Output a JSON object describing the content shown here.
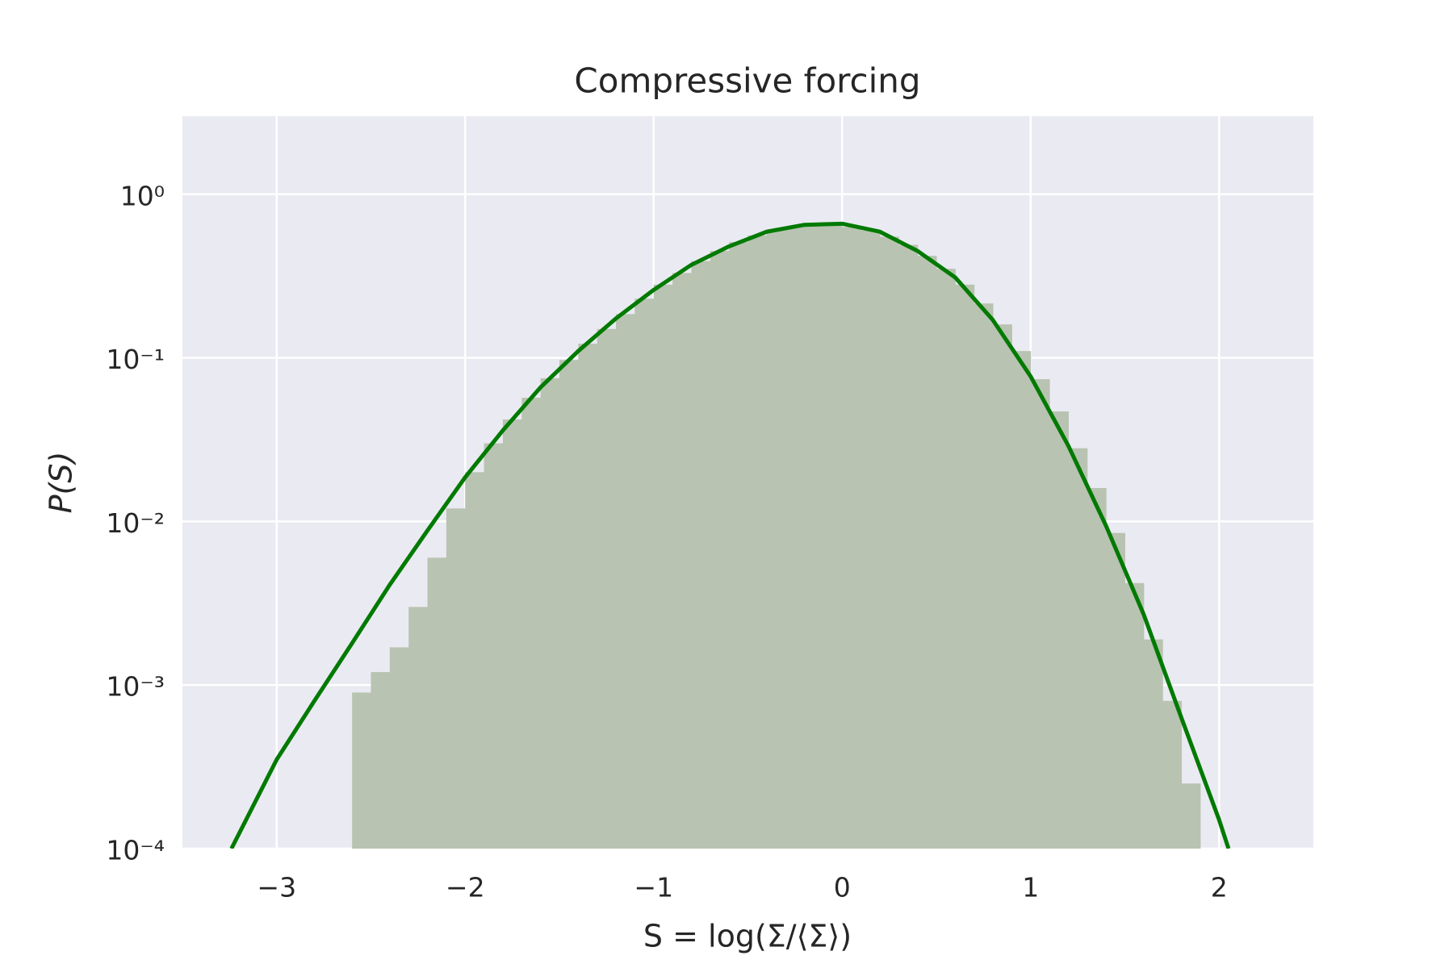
{
  "chart_data": {
    "type": "histogram",
    "title": "Compressive forcing",
    "xlabel": "S = log(Σ/⟨Σ⟩)",
    "ylabel": "P(S)",
    "yscale": "log",
    "grid": true,
    "background": "#eaeaf2",
    "xlim": [
      -3.5,
      2.5
    ],
    "ylim": [
      0.0001,
      3
    ],
    "xticks": [
      {
        "value": -3,
        "label": "−3"
      },
      {
        "value": -2,
        "label": "−2"
      },
      {
        "value": -1,
        "label": "−1"
      },
      0,
      1,
      2
    ],
    "yticks": [
      {
        "value": 0.0001,
        "label": "10⁻⁴"
      },
      {
        "value": 0.001,
        "label": "10⁻³"
      },
      {
        "value": 0.01,
        "label": "10⁻²"
      },
      {
        "value": 0.1,
        "label": "10⁻¹"
      },
      {
        "value": 1,
        "label": "10⁰"
      }
    ],
    "color": "#b8c3b1",
    "bins": [
      -2.6,
      -2.5,
      -2.4,
      -2.3,
      -2.2,
      -2.1,
      -2.0,
      -1.9,
      -1.8,
      -1.7,
      -1.6,
      -1.5,
      -1.4,
      -1.3,
      -1.2,
      -1.1,
      -1.0,
      -0.9,
      -0.8,
      -0.7,
      -0.6,
      -0.5,
      -0.4,
      -0.3,
      -0.2,
      -0.1,
      0.0,
      0.1,
      0.2,
      0.3,
      0.4,
      0.5,
      0.6,
      0.7,
      0.8,
      0.9,
      1.0,
      1.1,
      1.2,
      1.3,
      1.4,
      1.5,
      1.6,
      1.7,
      1.8,
      1.9
    ],
    "values": [
      0.0009,
      0.0012,
      0.0017,
      0.003,
      0.006,
      0.012,
      0.02,
      0.03,
      0.042,
      0.057,
      0.075,
      0.097,
      0.122,
      0.15,
      0.185,
      0.23,
      0.28,
      0.33,
      0.39,
      0.45,
      0.51,
      0.56,
      0.6,
      0.63,
      0.65,
      0.65,
      0.63,
      0.6,
      0.55,
      0.49,
      0.42,
      0.35,
      0.28,
      0.215,
      0.16,
      0.11,
      0.074,
      0.047,
      0.028,
      0.016,
      0.0085,
      0.0042,
      0.0019,
      0.0008,
      0.00025
    ],
    "overlay": {
      "type": "line",
      "color": "#007a00",
      "x": [
        -3.24,
        -3.0,
        -2.8,
        -2.6,
        -2.4,
        -2.2,
        -2.0,
        -1.8,
        -1.6,
        -1.4,
        -1.2,
        -1.0,
        -0.8,
        -0.6,
        -0.4,
        -0.2,
        0.0,
        0.2,
        0.4,
        0.6,
        0.8,
        1.0,
        1.2,
        1.4,
        1.6,
        1.8,
        2.0,
        2.05
      ],
      "values": [
        0.0001,
        0.00035,
        0.0008,
        0.0018,
        0.0041,
        0.0088,
        0.0186,
        0.036,
        0.066,
        0.11,
        0.174,
        0.26,
        0.37,
        0.48,
        0.59,
        0.65,
        0.66,
        0.59,
        0.45,
        0.31,
        0.17,
        0.077,
        0.029,
        0.0094,
        0.0027,
        0.00063,
        0.00015,
        0.0001
      ]
    }
  }
}
